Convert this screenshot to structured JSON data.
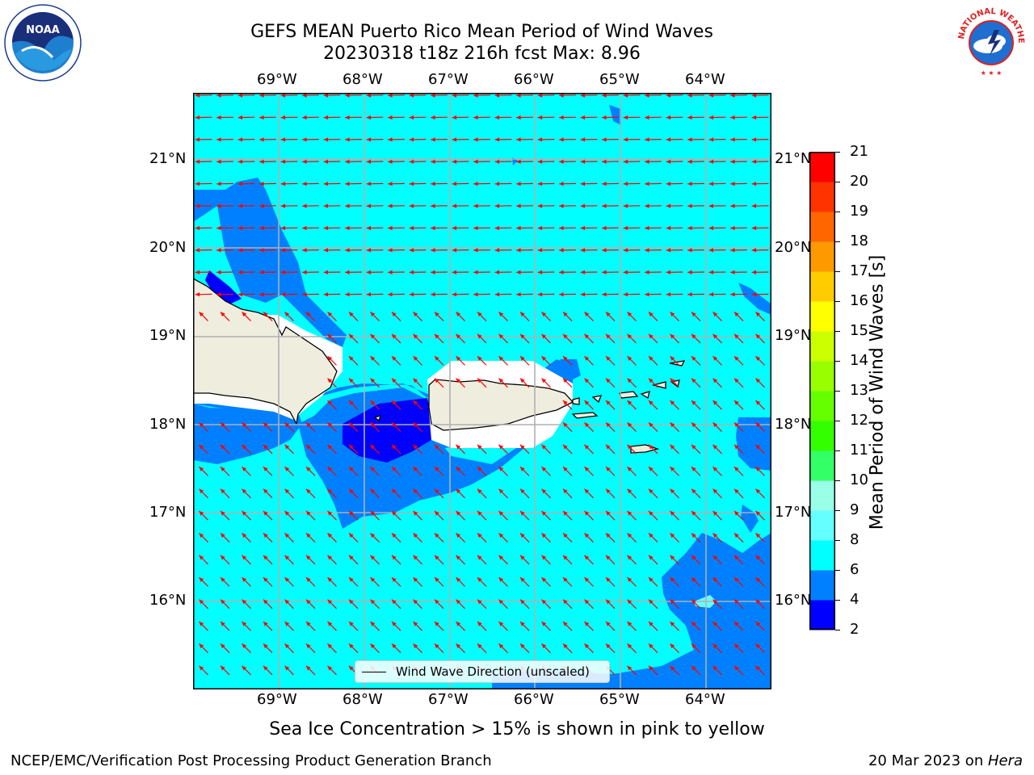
{
  "title_line1": "GEFS MEAN Puerto Rico Mean Period of Wind Waves",
  "title_line2": "20230318 t18z 216h fcst   Max: 8.96",
  "logos": {
    "left": "NOAA",
    "right": "NATIONAL WEATHER SERVICE"
  },
  "map": {
    "lon_labels": [
      "69°W",
      "68°W",
      "67°W",
      "66°W",
      "65°W",
      "64°W"
    ],
    "lat_labels": [
      "21°N",
      "20°N",
      "19°N",
      "18°N",
      "17°N",
      "16°N"
    ],
    "lon_range": [
      -70.0,
      -63.25
    ],
    "lat_range": [
      15.0,
      21.75
    ],
    "legend_label": "Wind Wave Direction (unscaled)",
    "land_color": "#efedde",
    "background_color": "#00ffff",
    "arrow_color": "#ff0000"
  },
  "colorbar": {
    "label": "Mean Period of Wind Waves [s]",
    "ticks": [
      "2",
      "4",
      "6",
      "8",
      "9",
      "10",
      "11",
      "12",
      "13",
      "14",
      "15",
      "16",
      "17",
      "18",
      "19",
      "20",
      "21"
    ],
    "colors": [
      "#0000ff",
      "#0080ff",
      "#00ffff",
      "#66ffff",
      "#99ffe6",
      "#33ff66",
      "#33ff00",
      "#66ff00",
      "#99ff00",
      "#ccff00",
      "#ffff00",
      "#ffcc00",
      "#ff9900",
      "#ff6600",
      "#ff3300",
      "#ff0000"
    ]
  },
  "sea_ice_note": "Sea Ice Concentration > 15% is shown in pink to yellow",
  "footer_left": "NCEP/EMC/Verification Post Processing Product Generation Branch",
  "footer_right_date": "20 Mar 2023 on ",
  "footer_right_host": "Hera"
}
